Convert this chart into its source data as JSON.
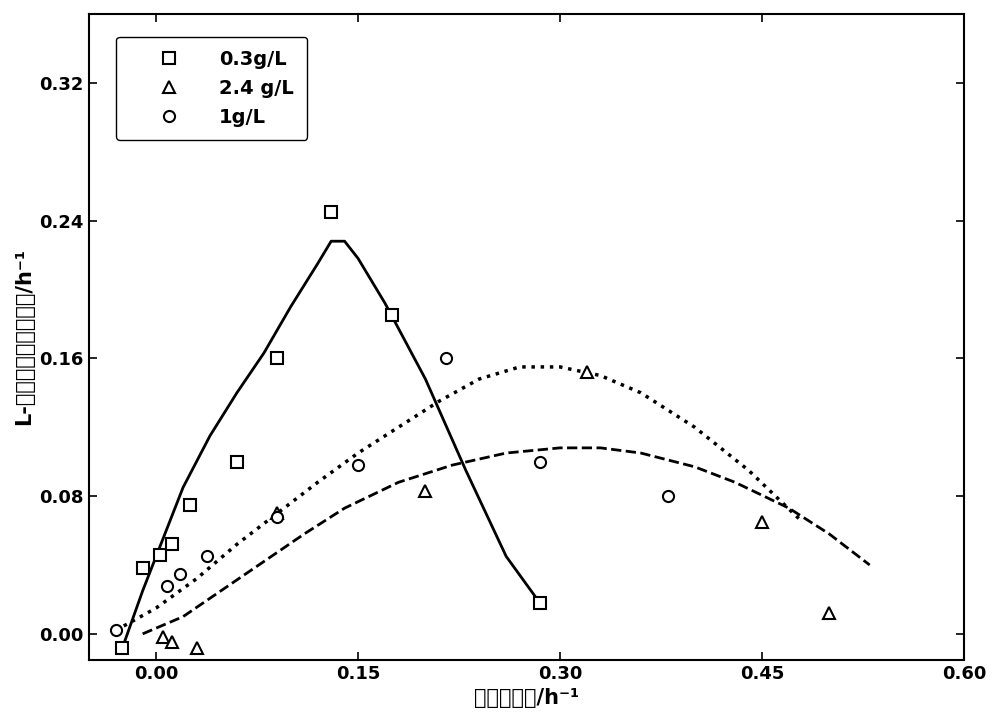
{
  "title": "",
  "xlabel": "比生长速率/h⁻¹",
  "ylabel": "L-苯丙氨酸比合成速率/h⁻¹",
  "xlim": [
    -0.05,
    0.6
  ],
  "ylim": [
    -0.015,
    0.36
  ],
  "xticks": [
    0.0,
    0.15,
    0.3,
    0.45,
    0.6
  ],
  "yticks": [
    0.0,
    0.08,
    0.16,
    0.24,
    0.32
  ],
  "series_03": {
    "label": "0.3g/L",
    "scatter_x": [
      -0.025,
      -0.01,
      0.003,
      0.012,
      0.025,
      0.06,
      0.09,
      0.13,
      0.175,
      0.285
    ],
    "scatter_y": [
      -0.008,
      0.038,
      0.046,
      0.052,
      0.075,
      0.1,
      0.16,
      0.245,
      0.185,
      0.018
    ],
    "curve_x": [
      -0.025,
      -0.01,
      0.005,
      0.02,
      0.04,
      0.06,
      0.08,
      0.1,
      0.12,
      0.13,
      0.14,
      0.15,
      0.17,
      0.2,
      0.23,
      0.26,
      0.285
    ],
    "curve_y": [
      -0.008,
      0.025,
      0.055,
      0.085,
      0.115,
      0.14,
      0.163,
      0.19,
      0.215,
      0.228,
      0.228,
      0.218,
      0.192,
      0.148,
      0.095,
      0.045,
      0.018
    ]
  },
  "series_24": {
    "label": "2.4 g/L",
    "scatter_x": [
      0.005,
      0.012,
      0.03,
      0.09,
      0.2,
      0.32,
      0.45,
      0.5
    ],
    "scatter_y": [
      -0.002,
      -0.005,
      -0.008,
      0.07,
      0.083,
      0.152,
      0.065,
      0.012
    ],
    "curve_x": [
      -0.01,
      0.02,
      0.05,
      0.08,
      0.11,
      0.14,
      0.18,
      0.22,
      0.26,
      0.3,
      0.33,
      0.36,
      0.4,
      0.43,
      0.47,
      0.5,
      0.53
    ],
    "curve_y": [
      0.0,
      0.01,
      0.026,
      0.042,
      0.058,
      0.073,
      0.088,
      0.098,
      0.105,
      0.108,
      0.108,
      0.105,
      0.097,
      0.088,
      0.073,
      0.058,
      0.04
    ]
  },
  "series_1": {
    "label": "1g/L",
    "scatter_x": [
      -0.03,
      0.008,
      0.018,
      0.038,
      0.09,
      0.15,
      0.215,
      0.285,
      0.38
    ],
    "scatter_y": [
      0.002,
      0.028,
      0.035,
      0.045,
      0.068,
      0.098,
      0.16,
      0.1,
      0.08
    ],
    "curve_x": [
      -0.03,
      0.0,
      0.03,
      0.06,
      0.09,
      0.12,
      0.15,
      0.18,
      0.21,
      0.24,
      0.27,
      0.3,
      0.33,
      0.36,
      0.4,
      0.44,
      0.48
    ],
    "curve_y": [
      0.002,
      0.015,
      0.032,
      0.052,
      0.07,
      0.088,
      0.105,
      0.12,
      0.135,
      0.148,
      0.155,
      0.155,
      0.15,
      0.14,
      0.12,
      0.095,
      0.065
    ]
  },
  "background_color": "#ffffff",
  "line_color": "#000000",
  "marker_size": 8,
  "linewidth": 2.0,
  "legend_fontsize": 14,
  "tick_fontsize": 13,
  "label_fontsize": 15
}
